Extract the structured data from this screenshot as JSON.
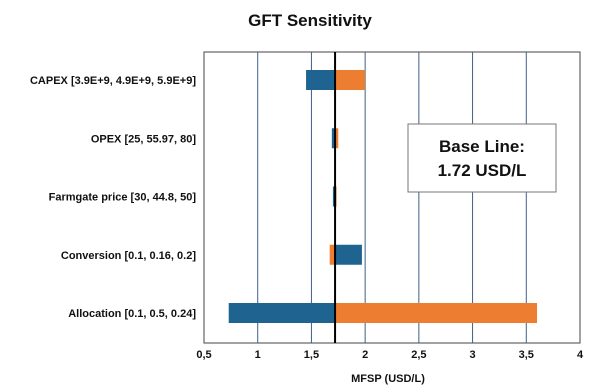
{
  "chart_data": {
    "type": "bar",
    "subtype": "tornado",
    "title": "GFT Sensitivity",
    "xlabel": "MFSP (USD/L)",
    "ylabel": "",
    "xlim": [
      0.5,
      4
    ],
    "xticks": [
      0.5,
      1,
      1.5,
      2,
      2.5,
      3,
      3.5,
      4
    ],
    "xtick_labels": [
      "0,5",
      "1",
      "1,5",
      "2",
      "2,5",
      "3",
      "3,5",
      "4"
    ],
    "grid": "vertical",
    "base_value": 1.72,
    "categories": [
      "CAPEX [3.9E+9, 4.9E+9, 5.9E+9]",
      "OPEX [25, 55.97, 80]",
      "Farmgate price [30, 44.8, 50]",
      "Conversion [0.1, 0.16, 0.2]",
      "Allocation [0.1, 0.5, 0.24]"
    ],
    "series": [
      {
        "color": "#1f6391",
        "values": [
          1.45,
          1.69,
          1.7,
          1.97,
          0.73
        ]
      },
      {
        "color": "#ed7d31",
        "values": [
          2.0,
          1.75,
          1.73,
          1.67,
          3.6
        ]
      }
    ],
    "annotation": {
      "line1": "Base Line:",
      "line2": "1.72  USD/L"
    }
  }
}
